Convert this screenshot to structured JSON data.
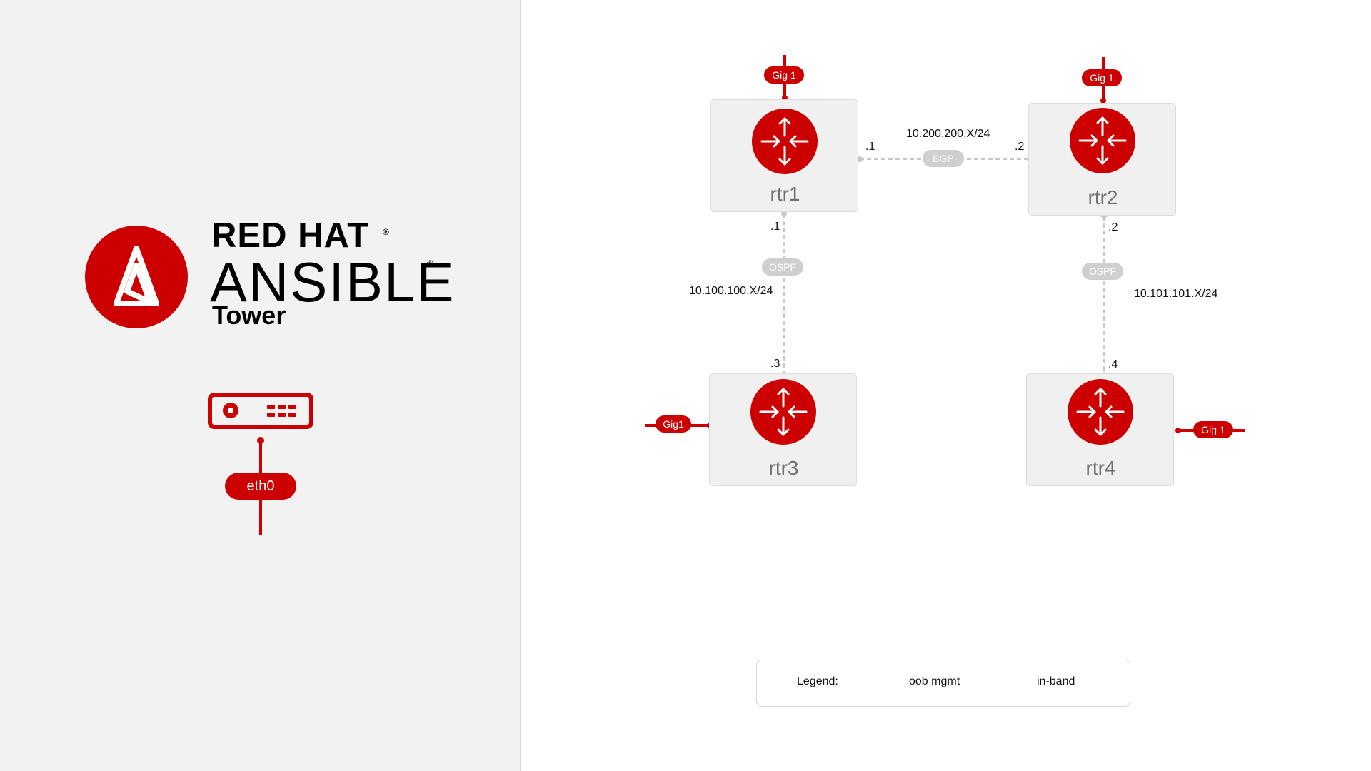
{
  "brand": {
    "line1": "RED HAT",
    "line2": "ANSIBLE",
    "line3": "Tower",
    "reg_mark": "®",
    "logo_icon": "ansible-logo-icon"
  },
  "tower_node": {
    "icon": "server-icon",
    "interface_label": "eth0"
  },
  "routers": [
    {
      "name": "rtr1"
    },
    {
      "name": "rtr2"
    },
    {
      "name": "rtr3"
    },
    {
      "name": "rtr4"
    }
  ],
  "router_icon": "router-arrows-icon",
  "links": {
    "bgp": {
      "protocol": "BGP",
      "subnet": "10.200.200.X/24",
      "left_ip": ".1",
      "right_ip": ".2"
    },
    "ospf_left": {
      "protocol": "OSPF",
      "subnet": "10.100.100.X/24",
      "top_ip": ".1",
      "bottom_ip": ".3"
    },
    "ospf_right": {
      "protocol": "OSPF",
      "subnet": "10.101.101.X/24",
      "top_ip": ".2",
      "bottom_ip": ".4"
    }
  },
  "interfaces": {
    "rtr1": "Gig 1",
    "rtr2": "Gig 1",
    "rtr3": "Gig1",
    "rtr4": "Gig 1"
  },
  "legend": {
    "title": "Legend:",
    "oob_label": "oob mgmt",
    "inband_label": "in-band"
  },
  "colors": {
    "brand_red": "#cc0000",
    "link_grey": "#c8c8c8",
    "panel_grey": "#f2f2f2"
  }
}
